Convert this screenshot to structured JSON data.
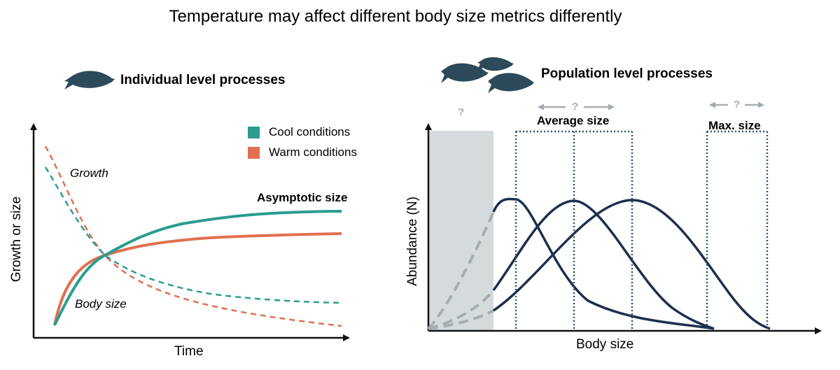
{
  "title": "Temperature may affect different body size metrics differently",
  "left_panel": {
    "heading": "Individual level processes",
    "legend": [
      {
        "label": "Cool conditions",
        "color": "#2a9d8f"
      },
      {
        "label": "Warm conditions",
        "color": "#e07050"
      }
    ],
    "y_axis_label": "Growth or size",
    "x_axis_label": "Time",
    "growth_label": "Growth",
    "body_size_label": "Body size",
    "asymptote_label": "Asymptotic size"
  },
  "right_panel": {
    "heading": "Population level processes",
    "y_axis_label": "Abundance (N)",
    "x_axis_label": "Body size",
    "shaded_question": "?",
    "average_size": {
      "label": "Average size",
      "question": "?"
    },
    "max_size": {
      "label": "Max. size",
      "question": "?"
    }
  },
  "colors": {
    "fish": "#2c4a5a",
    "population_curve": "#1d2f4f",
    "dotted_box": "#2f5566",
    "shaded": "#d5dadd",
    "arrow_gray": "#a6adb2"
  }
}
